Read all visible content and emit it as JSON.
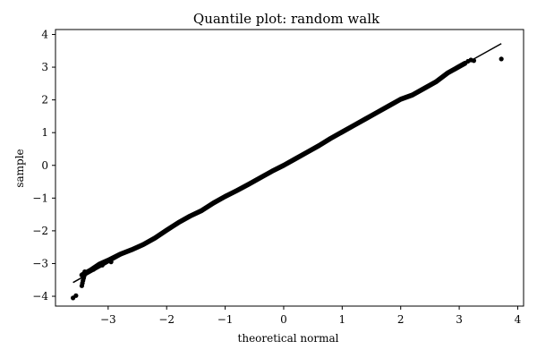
{
  "chart_data": {
    "type": "scatter",
    "title": "Quantile plot: random walk",
    "xlabel": "theoretical normal",
    "ylabel": "sample",
    "xlim": [
      -3.9,
      4.1
    ],
    "ylim": [
      -4.3,
      4.15
    ],
    "xticks": [
      -3,
      -2,
      -1,
      0,
      1,
      2,
      3,
      4
    ],
    "yticks": [
      -4,
      -3,
      -2,
      -1,
      0,
      1,
      2,
      3,
      4
    ],
    "xtick_labels": [
      "−3",
      "−2",
      "−1",
      "0",
      "1",
      "2",
      "3",
      "4"
    ],
    "ytick_labels": [
      "−4",
      "−3",
      "−2",
      "−1",
      "0",
      "1",
      "2",
      "3",
      "4"
    ],
    "grid": false,
    "marker_color": "#000000",
    "reference_line": {
      "x": [
        -3.6,
        3.72
      ],
      "y": [
        -3.58,
        3.72
      ]
    },
    "quantile_curve": {
      "x": [
        -3.45,
        -3.3,
        -3.15,
        -3.0,
        -2.8,
        -2.6,
        -2.4,
        -2.2,
        -2.0,
        -1.8,
        -1.6,
        -1.4,
        -1.2,
        -1.0,
        -0.8,
        -0.6,
        -0.4,
        -0.2,
        0.0,
        0.2,
        0.4,
        0.6,
        0.8,
        1.0,
        1.2,
        1.4,
        1.6,
        1.8,
        2.0,
        2.2,
        2.4,
        2.6,
        2.8,
        3.0,
        3.1
      ],
      "y": [
        -3.35,
        -3.2,
        -3.02,
        -2.9,
        -2.72,
        -2.58,
        -2.42,
        -2.22,
        -1.98,
        -1.75,
        -1.55,
        -1.38,
        -1.15,
        -0.95,
        -0.77,
        -0.58,
        -0.38,
        -0.18,
        0.0,
        0.2,
        0.4,
        0.6,
        0.82,
        1.02,
        1.22,
        1.42,
        1.62,
        1.82,
        2.02,
        2.15,
        2.35,
        2.55,
        2.82,
        3.02,
        3.12
      ]
    },
    "tail_points": {
      "x": [
        -3.6,
        -3.55,
        -3.45,
        -3.44,
        -3.43,
        -3.42,
        -3.41,
        -3.4,
        -3.25,
        -3.1,
        -2.95,
        3.15,
        3.2,
        3.25,
        3.72
      ],
      "y": [
        -4.05,
        -3.98,
        -3.68,
        -3.6,
        -3.52,
        -3.45,
        -3.38,
        -3.25,
        -3.18,
        -3.05,
        -2.95,
        3.18,
        3.22,
        3.2,
        3.25
      ]
    }
  }
}
